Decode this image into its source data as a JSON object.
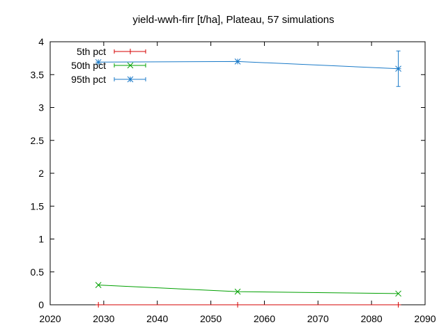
{
  "title": "yield-wwh-firr [t/ha], Plateau, 57 simulations",
  "chart_data": {
    "type": "line",
    "title": "yield-wwh-firr [t/ha], Plateau, 57 simulations",
    "xlabel": "",
    "ylabel": "",
    "xlim": [
      2020,
      2090
    ],
    "ylim": [
      0,
      4
    ],
    "xticks": [
      2020,
      2030,
      2040,
      2050,
      2060,
      2070,
      2080,
      2090
    ],
    "yticks": [
      0,
      0.5,
      1,
      1.5,
      2,
      2.5,
      3,
      3.5,
      4
    ],
    "ytick_labels": [
      "0",
      "0.5",
      "1",
      "1.5",
      "2",
      "2.5",
      "3",
      "3.5",
      "4"
    ],
    "grid": false,
    "legend_position": "top-left",
    "x": [
      2029,
      2055,
      2085
    ],
    "series": [
      {
        "name": "5th pct",
        "color": "#d40000",
        "marker": "plus",
        "values": [
          0.0,
          0.0,
          0.0
        ],
        "err_low": [
          0.0,
          0.0,
          0.0
        ],
        "err_high": [
          0.0,
          0.0,
          0.0
        ]
      },
      {
        "name": "50th pct",
        "color": "#00a000",
        "marker": "cross",
        "values": [
          0.3,
          0.2,
          0.17
        ],
        "err_low": [
          0.3,
          0.2,
          0.17
        ],
        "err_high": [
          0.3,
          0.2,
          0.17
        ]
      },
      {
        "name": "95th pct",
        "color": "#1a7ac8",
        "marker": "asterisk",
        "values": [
          3.69,
          3.7,
          3.59
        ],
        "err_low": [
          3.69,
          3.7,
          3.32
        ],
        "err_high": [
          3.69,
          3.7,
          3.86
        ]
      }
    ]
  }
}
